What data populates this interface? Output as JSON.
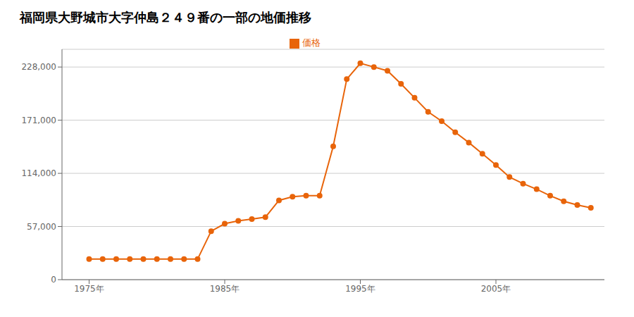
{
  "chart_data": {
    "type": "line",
    "title": "福岡県大野城市大字仲島２４９番の一部の地価推移",
    "x": [
      1975,
      1976,
      1977,
      1978,
      1979,
      1980,
      1981,
      1982,
      1983,
      1984,
      1985,
      1986,
      1987,
      1988,
      1989,
      1990,
      1991,
      1992,
      1993,
      1994,
      1995,
      1996,
      1997,
      1998,
      1999,
      2000,
      2001,
      2002,
      2003,
      2004,
      2005,
      2006,
      2007,
      2008,
      2009,
      2010,
      2011,
      2012
    ],
    "series": [
      {
        "name": "価格",
        "color": "#e8640a",
        "marker": "circle",
        "values": [
          22000,
          22000,
          22000,
          22000,
          22000,
          22000,
          22000,
          22000,
          22000,
          52000,
          60000,
          63000,
          65000,
          67000,
          85000,
          89000,
          90000,
          90000,
          143000,
          215000,
          232000,
          228000,
          224000,
          210000,
          195000,
          180000,
          170000,
          158000,
          147000,
          135000,
          123000,
          110000,
          103000,
          97000,
          90000,
          84000,
          80000,
          77000
        ]
      }
    ],
    "xlim": [
      1973,
      2013
    ],
    "xticks": [
      {
        "value": 1975,
        "label": "1975年"
      },
      {
        "value": 1985,
        "label": "1985年"
      },
      {
        "value": 1995,
        "label": "1995年"
      },
      {
        "value": 2005,
        "label": "2005年"
      }
    ],
    "ylim": [
      0,
      247000
    ],
    "yticks": [
      0,
      {
        "value": 57000,
        "label": "57,000"
      },
      {
        "value": 114000,
        "label": "114,000"
      },
      {
        "value": 171000,
        "label": "171,000"
      },
      {
        "value": 228000,
        "label": "228,000"
      }
    ],
    "grid": "y",
    "legend": "top"
  }
}
